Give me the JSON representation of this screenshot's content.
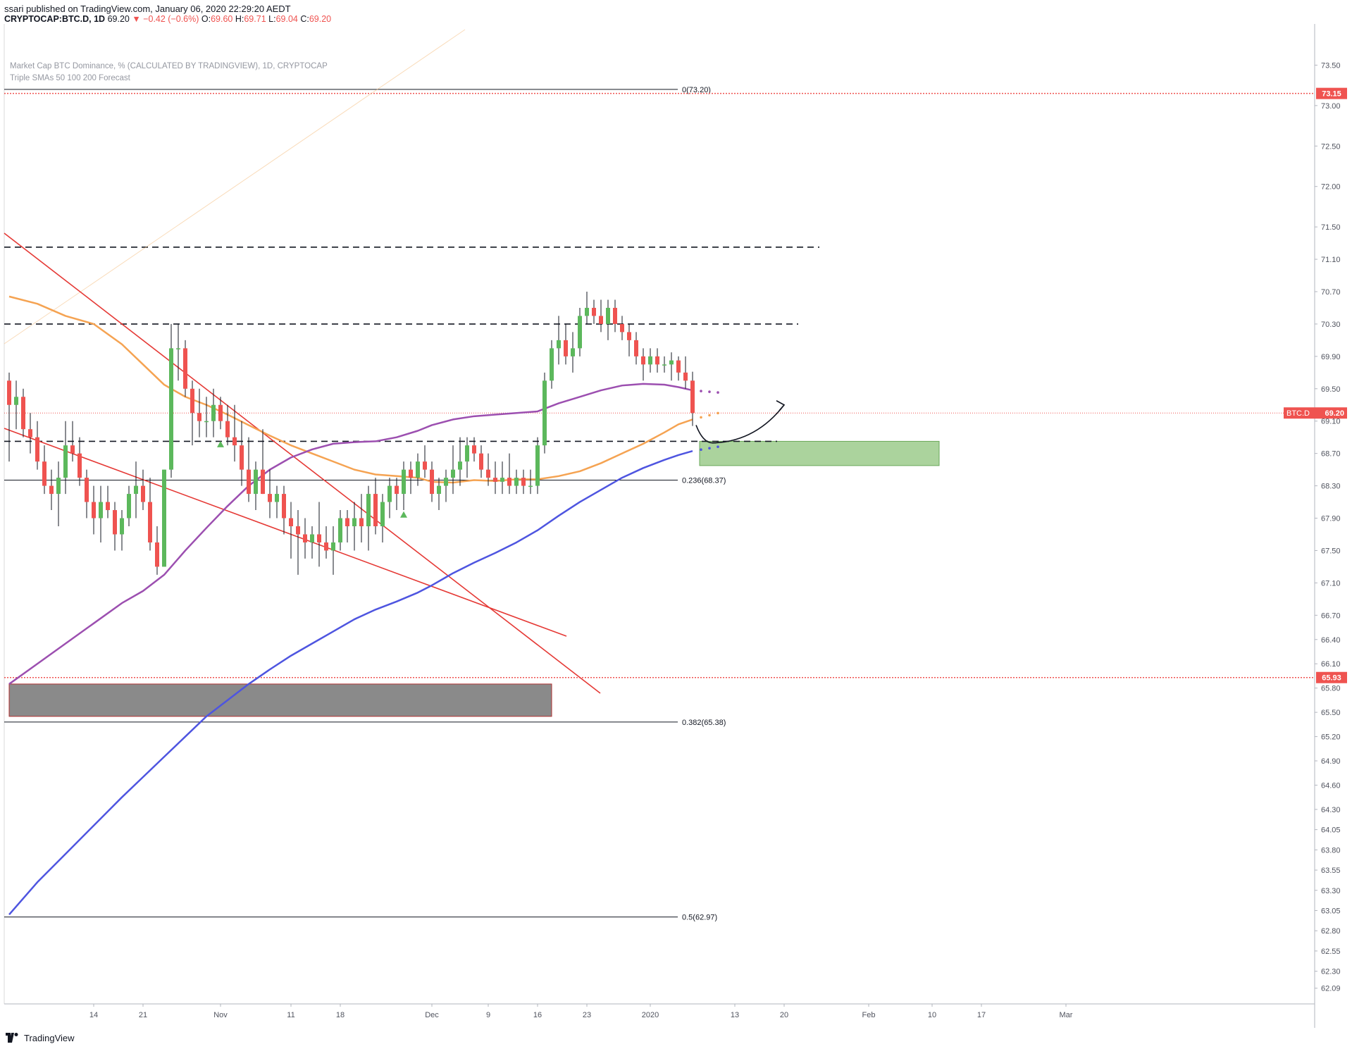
{
  "header": {
    "publisher": "ssari published on TradingView.com, January 06, 2020 22:29:20 AEDT",
    "symbol": "CRYPTOCAP:BTC.D, 1D",
    "last": "69.20",
    "change_arrow": "▼",
    "change": "−0.42 (−0.6%)",
    "o_label": "O:",
    "o_value": "69.60",
    "h_label": "H:",
    "h_value": "69.71",
    "l_label": "L:",
    "l_value": "69.04",
    "c_label": "C:",
    "c_value": "69.20"
  },
  "legend": {
    "title": "Market Cap BTC Dominance, % (CALCULATED BY TRADINGVIEW), 1D, CRYPTOCAP",
    "indicator": "Triple SMAs 50 100 200 Forecast"
  },
  "footer": {
    "brand": "TradingView"
  },
  "colors": {
    "up": "#5cb85c",
    "down": "#ef5350",
    "sma50": "#f5a352",
    "sma100": "#9c4fb0",
    "sma200": "#4e55e0",
    "trend": "#e53935",
    "support_zone": "#8fc47c",
    "gray_zone": "#8a8a8a",
    "price_tag": "#ef5350"
  },
  "chart_data": {
    "type": "candlestick",
    "symbol": "BTC.D",
    "interval": "1D",
    "y_axis": {
      "min": 61.8,
      "max": 73.8,
      "ticks": [
        "73.50",
        "73.00",
        "72.50",
        "72.00",
        "71.50",
        "71.10",
        "70.70",
        "70.30",
        "69.90",
        "69.50",
        "69.10",
        "68.70",
        "68.30",
        "67.90",
        "67.50",
        "67.10",
        "66.70",
        "66.40",
        "66.10",
        "65.80",
        "65.50",
        "65.20",
        "64.90",
        "64.60",
        "64.30",
        "64.05",
        "63.80",
        "63.55",
        "63.30",
        "63.05",
        "62.80",
        "62.55",
        "62.30",
        "62.09"
      ]
    },
    "x_axis": {
      "start_day": 0,
      "end_day": 149,
      "ticks": [
        {
          "label": "14",
          "day": 12
        },
        {
          "label": "21",
          "day": 19
        },
        {
          "label": "Nov",
          "day": 30
        },
        {
          "label": "11",
          "day": 40
        },
        {
          "label": "18",
          "day": 47
        },
        {
          "label": "Dec",
          "day": 60
        },
        {
          "label": "9",
          "day": 68
        },
        {
          "label": "16",
          "day": 75
        },
        {
          "label": "23",
          "day": 82
        },
        {
          "label": "2020",
          "day": 91
        },
        {
          "label": "13",
          "day": 103
        },
        {
          "label": "20",
          "day": 110
        },
        {
          "label": "Feb",
          "day": 122
        },
        {
          "label": "10",
          "day": 131
        },
        {
          "label": "17",
          "day": 138
        },
        {
          "label": "Mar",
          "day": 150
        }
      ]
    },
    "candles": [
      {
        "o": 69.6,
        "h": 69.7,
        "l": 68.6,
        "c": 69.3
      },
      {
        "o": 69.3,
        "h": 69.6,
        "l": 69.0,
        "c": 69.4
      },
      {
        "o": 69.4,
        "h": 69.5,
        "l": 68.9,
        "c": 69.0
      },
      {
        "o": 69.0,
        "h": 69.2,
        "l": 68.7,
        "c": 68.9
      },
      {
        "o": 68.9,
        "h": 69.1,
        "l": 68.5,
        "c": 68.6
      },
      {
        "o": 68.6,
        "h": 68.8,
        "l": 68.2,
        "c": 68.3
      },
      {
        "o": 68.3,
        "h": 68.5,
        "l": 68.0,
        "c": 68.2
      },
      {
        "o": 68.2,
        "h": 68.6,
        "l": 67.8,
        "c": 68.4
      },
      {
        "o": 68.4,
        "h": 69.1,
        "l": 68.2,
        "c": 68.8
      },
      {
        "o": 68.8,
        "h": 69.1,
        "l": 68.6,
        "c": 68.7
      },
      {
        "o": 68.7,
        "h": 68.9,
        "l": 68.3,
        "c": 68.4
      },
      {
        "o": 68.4,
        "h": 68.5,
        "l": 67.9,
        "c": 68.1
      },
      {
        "o": 68.1,
        "h": 68.3,
        "l": 67.7,
        "c": 67.9
      },
      {
        "o": 67.9,
        "h": 68.3,
        "l": 67.6,
        "c": 68.1
      },
      {
        "o": 68.1,
        "h": 68.3,
        "l": 67.9,
        "c": 68.0
      },
      {
        "o": 68.0,
        "h": 68.1,
        "l": 67.5,
        "c": 67.7
      },
      {
        "o": 67.7,
        "h": 68.0,
        "l": 67.5,
        "c": 67.9
      },
      {
        "o": 67.9,
        "h": 68.3,
        "l": 67.8,
        "c": 68.2
      },
      {
        "o": 68.2,
        "h": 68.6,
        "l": 67.9,
        "c": 68.3
      },
      {
        "o": 68.3,
        "h": 68.5,
        "l": 68.0,
        "c": 68.1
      },
      {
        "o": 68.1,
        "h": 68.4,
        "l": 67.5,
        "c": 67.6
      },
      {
        "o": 67.6,
        "h": 67.8,
        "l": 67.2,
        "c": 67.3
      },
      {
        "o": 67.3,
        "h": 68.5,
        "l": 67.3,
        "c": 68.5
      },
      {
        "o": 68.5,
        "h": 70.3,
        "l": 68.4,
        "c": 70.0
      },
      {
        "o": 70.0,
        "h": 70.3,
        "l": 69.6,
        "c": 70.0
      },
      {
        "o": 70.0,
        "h": 70.1,
        "l": 69.4,
        "c": 69.5
      },
      {
        "o": 69.5,
        "h": 69.6,
        "l": 68.8,
        "c": 69.2
      },
      {
        "o": 69.2,
        "h": 69.5,
        "l": 68.9,
        "c": 69.1
      },
      {
        "o": 69.1,
        "h": 69.4,
        "l": 68.9,
        "c": 69.1
      },
      {
        "o": 69.1,
        "h": 69.5,
        "l": 68.9,
        "c": 69.3
      },
      {
        "o": 69.3,
        "h": 69.4,
        "l": 69.0,
        "c": 69.1
      },
      {
        "o": 69.1,
        "h": 69.3,
        "l": 68.8,
        "c": 68.9
      },
      {
        "o": 68.9,
        "h": 69.3,
        "l": 68.6,
        "c": 68.8
      },
      {
        "o": 68.8,
        "h": 69.1,
        "l": 68.3,
        "c": 68.5
      },
      {
        "o": 68.5,
        "h": 68.9,
        "l": 68.1,
        "c": 68.2
      },
      {
        "o": 68.2,
        "h": 68.6,
        "l": 68.0,
        "c": 68.5
      },
      {
        "o": 68.5,
        "h": 69.0,
        "l": 68.2,
        "c": 68.2
      },
      {
        "o": 68.2,
        "h": 68.5,
        "l": 67.9,
        "c": 68.1
      },
      {
        "o": 68.1,
        "h": 68.3,
        "l": 67.9,
        "c": 68.2
      },
      {
        "o": 68.2,
        "h": 68.3,
        "l": 67.7,
        "c": 67.9
      },
      {
        "o": 67.9,
        "h": 68.1,
        "l": 67.4,
        "c": 67.8
      },
      {
        "o": 67.8,
        "h": 68.0,
        "l": 67.2,
        "c": 67.7
      },
      {
        "o": 67.7,
        "h": 67.9,
        "l": 67.4,
        "c": 67.6
      },
      {
        "o": 67.6,
        "h": 67.8,
        "l": 67.4,
        "c": 67.7
      },
      {
        "o": 67.7,
        "h": 68.1,
        "l": 67.3,
        "c": 67.6
      },
      {
        "o": 67.6,
        "h": 67.8,
        "l": 67.4,
        "c": 67.5
      },
      {
        "o": 67.5,
        "h": 67.8,
        "l": 67.2,
        "c": 67.6
      },
      {
        "o": 67.6,
        "h": 68.0,
        "l": 67.5,
        "c": 67.9
      },
      {
        "o": 67.9,
        "h": 68.0,
        "l": 67.6,
        "c": 67.8
      },
      {
        "o": 67.8,
        "h": 68.1,
        "l": 67.5,
        "c": 67.9
      },
      {
        "o": 67.9,
        "h": 68.2,
        "l": 67.6,
        "c": 67.8
      },
      {
        "o": 67.8,
        "h": 68.3,
        "l": 67.5,
        "c": 68.2
      },
      {
        "o": 68.2,
        "h": 68.4,
        "l": 67.7,
        "c": 67.8
      },
      {
        "o": 67.8,
        "h": 68.2,
        "l": 67.6,
        "c": 68.1
      },
      {
        "o": 68.1,
        "h": 68.4,
        "l": 67.9,
        "c": 68.3
      },
      {
        "o": 68.3,
        "h": 68.4,
        "l": 68.0,
        "c": 68.2
      },
      {
        "o": 68.2,
        "h": 68.6,
        "l": 68.0,
        "c": 68.5
      },
      {
        "o": 68.5,
        "h": 68.6,
        "l": 68.2,
        "c": 68.4
      },
      {
        "o": 68.4,
        "h": 68.7,
        "l": 68.3,
        "c": 68.6
      },
      {
        "o": 68.6,
        "h": 68.8,
        "l": 68.4,
        "c": 68.5
      },
      {
        "o": 68.5,
        "h": 68.6,
        "l": 68.1,
        "c": 68.2
      },
      {
        "o": 68.2,
        "h": 68.4,
        "l": 68.0,
        "c": 68.3
      },
      {
        "o": 68.3,
        "h": 68.5,
        "l": 68.1,
        "c": 68.4
      },
      {
        "o": 68.4,
        "h": 68.8,
        "l": 68.2,
        "c": 68.5
      },
      {
        "o": 68.5,
        "h": 68.9,
        "l": 68.3,
        "c": 68.6
      },
      {
        "o": 68.6,
        "h": 68.9,
        "l": 68.4,
        "c": 68.8
      },
      {
        "o": 68.8,
        "h": 68.9,
        "l": 68.6,
        "c": 68.7
      },
      {
        "o": 68.7,
        "h": 68.8,
        "l": 68.4,
        "c": 68.5
      },
      {
        "o": 68.5,
        "h": 68.7,
        "l": 68.3,
        "c": 68.4
      },
      {
        "o": 68.4,
        "h": 68.6,
        "l": 68.2,
        "c": 68.35
      },
      {
        "o": 68.35,
        "h": 68.6,
        "l": 68.2,
        "c": 68.4
      },
      {
        "o": 68.4,
        "h": 68.7,
        "l": 68.2,
        "c": 68.3
      },
      {
        "o": 68.3,
        "h": 68.5,
        "l": 68.2,
        "c": 68.4
      },
      {
        "o": 68.4,
        "h": 68.5,
        "l": 68.2,
        "c": 68.3
      },
      {
        "o": 68.3,
        "h": 68.5,
        "l": 68.2,
        "c": 68.3
      },
      {
        "o": 68.3,
        "h": 68.9,
        "l": 68.2,
        "c": 68.8
      },
      {
        "o": 68.8,
        "h": 69.7,
        "l": 68.7,
        "c": 69.6
      },
      {
        "o": 69.6,
        "h": 70.1,
        "l": 69.5,
        "c": 70.0
      },
      {
        "o": 70.0,
        "h": 70.4,
        "l": 69.8,
        "c": 70.1
      },
      {
        "o": 70.1,
        "h": 70.3,
        "l": 69.8,
        "c": 69.9
      },
      {
        "o": 69.9,
        "h": 70.2,
        "l": 69.7,
        "c": 70.0
      },
      {
        "o": 70.0,
        "h": 70.5,
        "l": 69.9,
        "c": 70.4
      },
      {
        "o": 70.4,
        "h": 70.7,
        "l": 70.3,
        "c": 70.5
      },
      {
        "o": 70.5,
        "h": 70.6,
        "l": 70.3,
        "c": 70.4
      },
      {
        "o": 70.4,
        "h": 70.6,
        "l": 70.2,
        "c": 70.3
      },
      {
        "o": 70.3,
        "h": 70.6,
        "l": 70.1,
        "c": 70.5
      },
      {
        "o": 70.5,
        "h": 70.6,
        "l": 70.2,
        "c": 70.3
      },
      {
        "o": 70.3,
        "h": 70.4,
        "l": 70.1,
        "c": 70.2
      },
      {
        "o": 70.2,
        "h": 70.3,
        "l": 69.9,
        "c": 70.1
      },
      {
        "o": 70.1,
        "h": 70.2,
        "l": 69.8,
        "c": 69.9
      },
      {
        "o": 69.9,
        "h": 70.0,
        "l": 69.6,
        "c": 69.8
      },
      {
        "o": 69.8,
        "h": 70.0,
        "l": 69.7,
        "c": 69.9
      },
      {
        "o": 69.9,
        "h": 70.0,
        "l": 69.7,
        "c": 69.8
      },
      {
        "o": 69.8,
        "h": 69.9,
        "l": 69.7,
        "c": 69.8
      },
      {
        "o": 69.8,
        "h": 69.95,
        "l": 69.6,
        "c": 69.85
      },
      {
        "o": 69.85,
        "h": 69.9,
        "l": 69.6,
        "c": 69.7
      },
      {
        "o": 69.7,
        "h": 69.9,
        "l": 69.5,
        "c": 69.6
      },
      {
        "o": 69.6,
        "h": 69.71,
        "l": 69.04,
        "c": 69.2
      }
    ],
    "series": [
      {
        "name": "SMA 50",
        "values": [
          [
            0,
            70.64
          ],
          [
            4,
            70.55
          ],
          [
            8,
            70.4
          ],
          [
            12,
            70.3
          ],
          [
            16,
            70.05
          ],
          [
            19,
            69.8
          ],
          [
            22,
            69.55
          ],
          [
            25,
            69.4
          ],
          [
            28,
            69.3
          ],
          [
            31,
            69.18
          ],
          [
            34,
            69.05
          ],
          [
            37,
            68.92
          ],
          [
            40,
            68.8
          ],
          [
            43,
            68.7
          ],
          [
            46,
            68.6
          ],
          [
            49,
            68.5
          ],
          [
            52,
            68.44
          ],
          [
            55,
            68.42
          ],
          [
            58,
            68.4
          ],
          [
            60,
            68.35
          ],
          [
            63,
            68.34
          ],
          [
            66,
            68.37
          ],
          [
            69,
            68.36
          ],
          [
            72,
            68.38
          ],
          [
            75,
            68.38
          ],
          [
            78,
            68.42
          ],
          [
            81,
            68.48
          ],
          [
            84,
            68.58
          ],
          [
            87,
            68.7
          ],
          [
            90,
            68.82
          ],
          [
            93,
            68.96
          ],
          [
            95,
            69.06
          ],
          [
            97,
            69.12
          ]
        ]
      },
      {
        "name": "SMA 100",
        "values": [
          [
            0,
            65.85
          ],
          [
            4,
            66.1
          ],
          [
            8,
            66.35
          ],
          [
            12,
            66.6
          ],
          [
            16,
            66.85
          ],
          [
            19,
            67.0
          ],
          [
            22,
            67.2
          ],
          [
            25,
            67.5
          ],
          [
            28,
            67.78
          ],
          [
            31,
            68.05
          ],
          [
            34,
            68.3
          ],
          [
            37,
            68.5
          ],
          [
            40,
            68.65
          ],
          [
            43,
            68.75
          ],
          [
            46,
            68.82
          ],
          [
            49,
            68.84
          ],
          [
            52,
            68.85
          ],
          [
            55,
            68.9
          ],
          [
            58,
            68.98
          ],
          [
            60,
            69.05
          ],
          [
            63,
            69.12
          ],
          [
            66,
            69.16
          ],
          [
            69,
            69.18
          ],
          [
            72,
            69.2
          ],
          [
            75,
            69.22
          ],
          [
            78,
            69.32
          ],
          [
            81,
            69.4
          ],
          [
            84,
            69.48
          ],
          [
            87,
            69.54
          ],
          [
            90,
            69.56
          ],
          [
            93,
            69.55
          ],
          [
            95,
            69.52
          ],
          [
            97,
            69.48
          ]
        ]
      },
      {
        "name": "SMA 200",
        "values": [
          [
            0,
            63.0
          ],
          [
            4,
            63.4
          ],
          [
            8,
            63.75
          ],
          [
            12,
            64.1
          ],
          [
            16,
            64.45
          ],
          [
            19,
            64.7
          ],
          [
            22,
            64.95
          ],
          [
            25,
            65.2
          ],
          [
            28,
            65.45
          ],
          [
            31,
            65.65
          ],
          [
            34,
            65.85
          ],
          [
            37,
            66.03
          ],
          [
            40,
            66.2
          ],
          [
            43,
            66.35
          ],
          [
            46,
            66.5
          ],
          [
            49,
            66.65
          ],
          [
            52,
            66.77
          ],
          [
            55,
            66.87
          ],
          [
            58,
            66.98
          ],
          [
            60,
            67.07
          ],
          [
            63,
            67.22
          ],
          [
            66,
            67.35
          ],
          [
            69,
            67.47
          ],
          [
            72,
            67.6
          ],
          [
            75,
            67.75
          ],
          [
            78,
            67.93
          ],
          [
            81,
            68.1
          ],
          [
            84,
            68.25
          ],
          [
            87,
            68.4
          ],
          [
            90,
            68.52
          ],
          [
            93,
            68.62
          ],
          [
            95,
            68.68
          ],
          [
            97,
            68.73
          ]
        ]
      }
    ],
    "fib_levels": [
      {
        "label": "0(73.20)",
        "value": 73.2
      },
      {
        "label": "0.236(68.37)",
        "value": 68.37
      },
      {
        "label": "0.382(65.38)",
        "value": 65.38
      },
      {
        "label": "0.5(62.97)",
        "value": 62.97
      }
    ],
    "dashed_levels": [
      {
        "value": 71.25,
        "from_day": 0,
        "to_day": 115
      },
      {
        "value": 70.3,
        "from_day": 0,
        "to_day": 112
      },
      {
        "value": 68.85,
        "from_day": 0,
        "to_day": 109
      }
    ],
    "horizontal_lines": [
      {
        "label": "73.15",
        "value": 73.15
      },
      {
        "label": "65.93",
        "value": 65.93
      }
    ],
    "current_price": {
      "label": "BTC.D",
      "value": "69.20"
    },
    "zones": [
      {
        "name": "support",
        "from_day": 98,
        "to_day": 132,
        "top": 68.85,
        "bottom": 68.55
      },
      {
        "name": "gray",
        "from_day": 0,
        "to_day": 77,
        "top": 65.85,
        "bottom": 65.45
      }
    ]
  }
}
